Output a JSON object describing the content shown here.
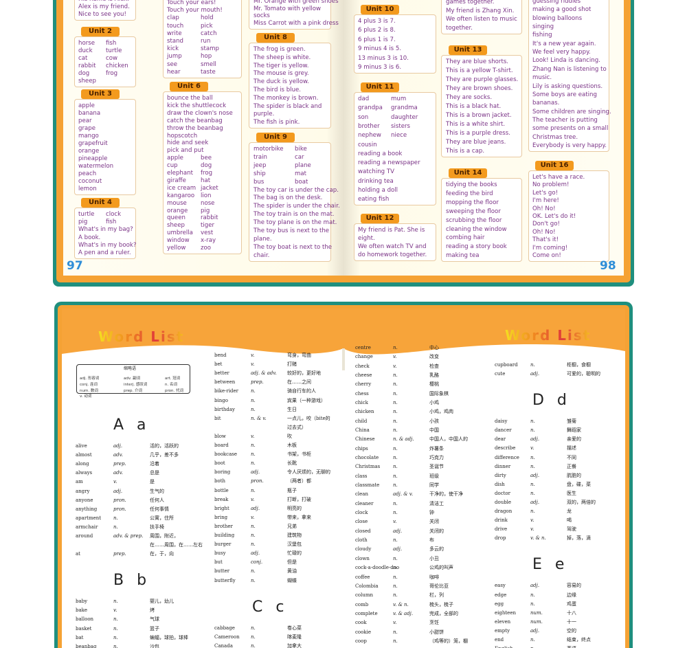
{
  "top": {
    "pages": [
      {
        "page_number": "97",
        "columns": [
          [
            {
              "lines": [
                "His name is Alex.",
                "Alex is my friend.",
                "Nice to see you!"
              ]
            },
            {
              "unit": "Unit 2",
              "lines": [
                [
                  "horse",
                  "fish"
                ],
                [
                  "duck",
                  "turtle"
                ],
                [
                  "cat",
                  "cow"
                ],
                [
                  "rabbit",
                  "chicken"
                ],
                [
                  "dog",
                  "frog"
                ],
                "sheep"
              ]
            },
            {
              "unit": "Unit 3",
              "lines": [
                "apple",
                "banana",
                "pear",
                "grape",
                "mango",
                "grapefruit",
                "orange",
                "pineapple",
                "watermelon",
                "peach",
                "coconut",
                "lemon"
              ]
            },
            {
              "unit": "Unit 4",
              "lines": [
                [
                  "turtle",
                  "clock"
                ],
                [
                  "pig",
                  "fish"
                ],
                "What's in my bag?",
                "A book.",
                "What's in my book?",
                "A pen and a ruler."
              ]
            }
          ],
          [
            {
              "lines": [
                "Touch your ears!",
                "Touch your mouth!",
                [
                  "clap",
                  "hold"
                ],
                [
                  "touch",
                  "pick"
                ],
                [
                  "write",
                  "catch"
                ],
                [
                  "stand",
                  "run"
                ],
                [
                  "kick",
                  "stamp"
                ],
                [
                  "jump",
                  "hop"
                ],
                [
                  "see",
                  "smell"
                ],
                [
                  "hear",
                  "taste"
                ]
              ]
            },
            {
              "unit": "Unit 6",
              "lines": [
                "bounce the ball",
                "kick the shuttlecock",
                "draw the clown's nose",
                "catch the beanbag",
                "throw the beanbag",
                "hopscotch",
                "hide and seek",
                "pick and put",
                [
                  "apple",
                  "bee"
                ],
                [
                  "cup",
                  "dog"
                ],
                [
                  "elephant",
                  "frog"
                ],
                [
                  "giraffe",
                  "hat"
                ],
                [
                  "ice cream",
                  "jacket"
                ],
                [
                  "kangaroo",
                  "lion"
                ],
                [
                  "mouse",
                  "nose"
                ],
                [
                  "orange",
                  "pig"
                ],
                [
                  "queen",
                  "rabbit"
                ],
                [
                  "sheep",
                  "tiger"
                ],
                [
                  "umbrella",
                  "vest"
                ],
                [
                  "window",
                  "x-ray"
                ],
                [
                  "yellow",
                  "zoo"
                ]
              ]
            }
          ],
          [
            {
              "lines": [
                "Mr. Orange with green shoes",
                "Mr. Tomato with yellow",
                "socks",
                "Miss Carrot with a pink dress"
              ]
            },
            {
              "unit": "Unit 8",
              "lines": [
                "The frog is green.",
                "The sheep is white.",
                "The tiger is yellow.",
                "The mouse is grey.",
                "The duck is yellow.",
                "The bird is blue.",
                "The monkey is brown.",
                "The spider is black and",
                "purple.",
                "The fish is pink."
              ]
            },
            {
              "unit": "Unit 9",
              "lines": [
                [
                  "motorbike",
                  "bike"
                ],
                [
                  "train",
                  "car"
                ],
                [
                  "jeep",
                  "plane"
                ],
                [
                  "ship",
                  "mat"
                ],
                [
                  "bus",
                  "boat"
                ],
                "The toy car is under the cap.",
                "The bag is on the desk.",
                "The spider is under the chair.",
                "The toy train is on the mat.",
                "The toy plane is on the mat.",
                "The toy bus is next to the",
                "plane.",
                "The toy boat is next to the",
                "chair."
              ]
            }
          ]
        ]
      },
      {
        "page_number": "98",
        "columns": [
          [
            {
              "unit": "Unit 10",
              "lines": [
                "4 plus 3 is 7.",
                "6 plus 2 is 8.",
                "6 plus 1 is 7.",
                "9 minus 4 is 5.",
                "13 minus 3 is 10.",
                "9 minus 3 is 6."
              ]
            },
            {
              "unit": "Unit 11",
              "lines": [
                [
                  "dad",
                  "mum"
                ],
                [
                  "grandpa",
                  "grandma"
                ],
                [
                  "son",
                  "daughter"
                ],
                [
                  "brother",
                  "sisters"
                ],
                [
                  "nephew",
                  "niece"
                ],
                "cousin",
                "reading a book",
                "reading a newspaper",
                "watching TV",
                "drinking tea",
                "holding a doll",
                "eating fish"
              ]
            },
            {
              "unit": "Unit 12",
              "lines": [
                "My friend is Pat. She is",
                "eight.",
                "We often watch TV and",
                "do homework together."
              ]
            }
          ],
          [
            {
              "lines": [
                "games together.",
                "My friend is Zhang Xin.",
                "We often listen to music",
                "together."
              ]
            },
            {
              "unit": "Unit 13",
              "lines": [
                "They are blue shorts.",
                "This is a yellow T-shirt.",
                "They are purple glasses.",
                "They are brown shoes.",
                "They are socks.",
                "This is a black hat.",
                "This is a brown jacket.",
                "This is a white shirt.",
                "This is a purple dress.",
                "They are blue jeans.",
                "This is a cap."
              ]
            },
            {
              "unit": "Unit 14",
              "lines": [
                "tidying the books",
                "feeding the bird",
                "mopping the floor",
                "sweeping the floor",
                "scrubbing the floor",
                "cleaning the window",
                "combing hair",
                "reading a story book",
                "making tea"
              ]
            }
          ],
          [
            {
              "lines": [
                "guessing riddles",
                "making a good shot",
                "blowing balloons",
                "singing",
                "fishing",
                "It's a new year again.",
                "We feel very happy.",
                "Look! Linda is dancing.",
                "Zhang Nan is listening to",
                "music.",
                "Lily is asking questions.",
                "Some boys are eating",
                "bananas.",
                "Some children are singing.",
                "The teacher is putting",
                "some presents on a small",
                "Christmas tree.",
                "Everybody is very happy."
              ]
            },
            {
              "unit": "Unit 16",
              "lines": [
                "Let's have a race.",
                "No problem!",
                "Let's go!",
                "I'm here!",
                "Oh! No!",
                "OK. Let's do it!",
                "Don't go!",
                "Oh! No!",
                "That's it!",
                "I'm coming!",
                "Come on!"
              ]
            }
          ]
        ]
      }
    ]
  },
  "word_list": {
    "titles": [
      "Word List",
      "Word List"
    ],
    "abbreviations": {
      "title": "缩略语",
      "items": [
        "adj. 形容词",
        "adv. 副词",
        "art. 冠词",
        "conj. 连词",
        "interj. 感叹词",
        "n. 名词",
        "num. 数词",
        "prep. 介词",
        "pron. 代词",
        "v. 动词"
      ]
    },
    "columns": [
      [
        "A a",
        [
          "alive",
          "adj.",
          "活的，活跃的"
        ],
        [
          "almost",
          "adv.",
          "几乎，差不多"
        ],
        [
          "along",
          "prep.",
          "沿着"
        ],
        [
          "always",
          "adv.",
          "总是"
        ],
        [
          "am",
          "v.",
          "是"
        ],
        [
          "angry",
          "adj.",
          "生气的"
        ],
        [
          "anyone",
          "pron.",
          "任何人"
        ],
        [
          "anything",
          "pron.",
          "任何事情"
        ],
        [
          "apartment",
          "n.",
          "公寓，住所"
        ],
        [
          "armchair",
          "n.",
          "扶手椅"
        ],
        [
          "around",
          "adv. & prep.",
          "周围，附近，",
          "在……周围，在……左右"
        ],
        [
          "at",
          "prep.",
          "在，于，向"
        ],
        "B b",
        [
          "baby",
          "n.",
          "婴儿，幼儿"
        ],
        [
          "bake",
          "v.",
          "烤"
        ],
        [
          "balloon",
          "n.",
          "气球"
        ],
        [
          "basket",
          "n.",
          "篮子"
        ],
        [
          "bat",
          "n.",
          "蝙蝠，球拍，球棒"
        ],
        [
          "beanbag",
          "n.",
          "沙包"
        ]
      ],
      [
        [
          "bend",
          "v.",
          "弯身，弯曲"
        ],
        [
          "bet",
          "v.",
          "打赌"
        ],
        [
          "better",
          "adj. & adv.",
          "较好的，更好地"
        ],
        [
          "between",
          "prep.",
          "在……之间"
        ],
        [
          "bike-rider",
          "n.",
          "骑自行车的人"
        ],
        [
          "bingo",
          "n.",
          "宾果（一种游戏）"
        ],
        [
          "birthday",
          "n.",
          "生日"
        ],
        [
          "bit",
          "n. & v.",
          "一点儿，咬（bite的",
          "过去式）"
        ],
        [
          "blow",
          "v.",
          "吹"
        ],
        [
          "board",
          "n.",
          "木板"
        ],
        [
          "bookcase",
          "n.",
          "书架，书柜"
        ],
        [
          "boot",
          "n.",
          "长靴"
        ],
        [
          "boring",
          "adj.",
          "令人厌烦的，无聊的"
        ],
        [
          "both",
          "pron.",
          "（两者）都"
        ],
        [
          "bottle",
          "n.",
          "瓶子"
        ],
        [
          "break",
          "v.",
          "打断，打破"
        ],
        [
          "bright",
          "adj.",
          "明亮的"
        ],
        [
          "bring",
          "v.",
          "带来，拿来"
        ],
        [
          "brother",
          "n.",
          "兄弟"
        ],
        [
          "building",
          "n.",
          "建筑物"
        ],
        [
          "burger",
          "n.",
          "汉堡包"
        ],
        [
          "busy",
          "adj.",
          "忙碌的"
        ],
        [
          "but",
          "conj.",
          "但是"
        ],
        [
          "butter",
          "n.",
          "黄油"
        ],
        [
          "butterfly",
          "n.",
          "蝴蝶"
        ],
        "C c",
        [
          "cabbage",
          "n.",
          "卷心菜"
        ],
        [
          "Cameroon",
          "n.",
          "喀麦隆"
        ],
        [
          "Canada",
          "n.",
          "加拿大"
        ]
      ],
      [
        [
          "centre",
          "n.",
          "中心"
        ],
        [
          "change",
          "v.",
          "改变"
        ],
        [
          "check",
          "v.",
          "检查"
        ],
        [
          "cheese",
          "n.",
          "乳酪"
        ],
        [
          "cherry",
          "n.",
          "樱桃"
        ],
        [
          "chess",
          "n.",
          "国际象棋"
        ],
        [
          "chick",
          "n.",
          "小鸡"
        ],
        [
          "chicken",
          "n.",
          "小鸡，鸡肉"
        ],
        [
          "child",
          "n.",
          "小孩"
        ],
        [
          "China",
          "n.",
          "中国"
        ],
        [
          "Chinese",
          "n. & adj.",
          "中国人，中国人的"
        ],
        [
          "chips",
          "n.",
          "炸薯条"
        ],
        [
          "chocolate",
          "n.",
          "巧克力"
        ],
        [
          "Christmas",
          "n.",
          "圣诞节"
        ],
        [
          "class",
          "n.",
          "班级"
        ],
        [
          "classmate",
          "n.",
          "同学"
        ],
        [
          "clean",
          "adj. & v.",
          "干净的，使干净"
        ],
        [
          "cleaner",
          "n.",
          "清洁工"
        ],
        [
          "clock",
          "n.",
          "钟"
        ],
        [
          "close",
          "v.",
          "关闭"
        ],
        [
          "closed",
          "adj.",
          "关闭的"
        ],
        [
          "cloth",
          "n.",
          "布"
        ],
        [
          "cloudy",
          "adj.",
          "多云的"
        ],
        [
          "clown",
          "n.",
          "小丑"
        ],
        [
          "cock-a-doodle-doo",
          "n.",
          "公鸡的叫声"
        ],
        [
          "coffee",
          "n.",
          "咖啡"
        ],
        [
          "Colombia",
          "n.",
          "哥伦比亚"
        ],
        [
          "column",
          "n.",
          "栏，列"
        ],
        [
          "comb",
          "v. & n.",
          "梳头，梳子"
        ],
        [
          "complete",
          "v. & adj.",
          "完成，全部的"
        ],
        [
          "cook",
          "v.",
          "烹饪"
        ],
        [
          "cookie",
          "n.",
          "小甜饼"
        ],
        [
          "coop",
          "n.",
          "（鸡等的）笼，棚"
        ]
      ],
      [
        [
          "cupboard",
          "n.",
          "柜橱，食橱"
        ],
        [
          "cute",
          "adj.",
          "可爱的，聪明的"
        ],
        "D d",
        [
          "daisy",
          "n.",
          "雏菊"
        ],
        [
          "dancer",
          "n.",
          "舞蹈家"
        ],
        [
          "dear",
          "adj.",
          "亲爱的"
        ],
        [
          "describe",
          "v.",
          "描述"
        ],
        [
          "difference",
          "n.",
          "不同"
        ],
        [
          "dinner",
          "n.",
          "正餐"
        ],
        [
          "dirty",
          "adj.",
          "肮脏的"
        ],
        [
          "dish",
          "n.",
          "盘，碟，菜"
        ],
        [
          "doctor",
          "n.",
          "医生"
        ],
        [
          "double",
          "adj.",
          "双的，两倍的"
        ],
        [
          "dragon",
          "n.",
          "龙"
        ],
        [
          "drink",
          "v.",
          "喝"
        ],
        [
          "drive",
          "v.",
          "驾驶"
        ],
        [
          "drop",
          "v. & n.",
          "掉，落，滴"
        ],
        "E e",
        [
          "easy",
          "adj.",
          "容易的"
        ],
        [
          "edge",
          "n.",
          "边缘"
        ],
        [
          "egg",
          "n.",
          "鸡蛋"
        ],
        [
          "eighteen",
          "num.",
          "十八"
        ],
        [
          "eleven",
          "num.",
          "十一"
        ],
        [
          "empty",
          "adj.",
          "空的"
        ],
        [
          "end",
          "n.",
          "结束，终点"
        ],
        [
          "English",
          "n.",
          "英语"
        ]
      ]
    ]
  }
}
